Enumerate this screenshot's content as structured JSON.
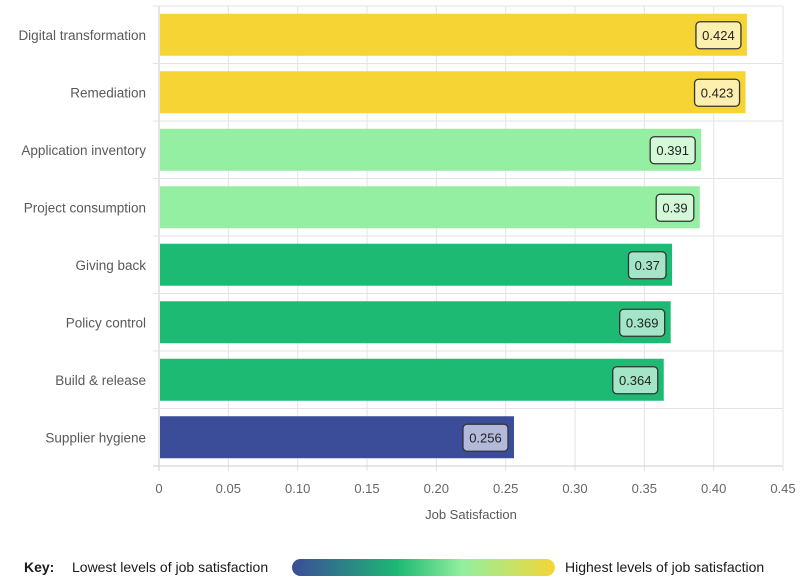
{
  "chart_data": {
    "type": "bar",
    "orientation": "horizontal",
    "title": "",
    "xlabel": "Job Satisfaction",
    "ylabel": "",
    "xlim": [
      0,
      0.45
    ],
    "grid": true,
    "x_ticks": [
      "0",
      "0.05",
      "0.10",
      "0.15",
      "0.20",
      "0.25",
      "0.30",
      "0.35",
      "0.40",
      "0.45"
    ],
    "categories": [
      "Digital transformation",
      "Remediation",
      "Application inventory",
      "Project consumption",
      "Giving back",
      "Policy control",
      "Build & release",
      "Supplier hygiene"
    ],
    "values": [
      0.424,
      0.423,
      0.391,
      0.39,
      0.37,
      0.369,
      0.364,
      0.256
    ],
    "value_labels": [
      "0.424",
      "0.423",
      "0.391",
      "0.39",
      "0.37",
      "0.369",
      "0.364",
      "0.256"
    ],
    "bar_colors": [
      "#f5d434",
      "#f5d434",
      "#95efa3",
      "#95efa3",
      "#1dba73",
      "#1dba73",
      "#1dba73",
      "#3b4c98"
    ],
    "label_fill_colors": [
      "#fdefae",
      "#fdefae",
      "#d4f9d8",
      "#d4f9d8",
      "#a5e5c7",
      "#a5e5c7",
      "#a5e5c7",
      "#b3b9da"
    ]
  },
  "legend": {
    "key_label": "Key:",
    "low_label": "Lowest levels of job satisfaction",
    "high_label": "Highest levels of job satisfaction",
    "gradient_colors": [
      "#3b4c98",
      "#1db874",
      "#94ef9f",
      "#f4d636"
    ]
  }
}
